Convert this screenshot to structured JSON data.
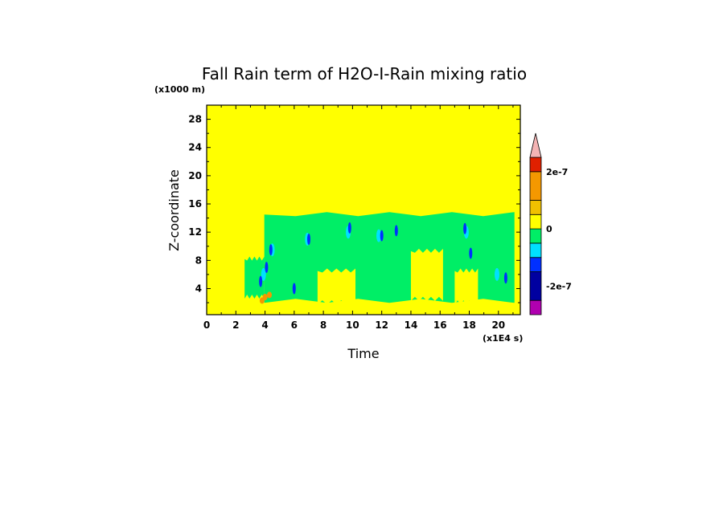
{
  "chart_data": {
    "type": "heatmap",
    "title": "Fall Rain term of H2O-I-Rain mixing ratio",
    "xlabel": "Time",
    "ylabel": "Z-coordinate",
    "x_unit": "(x1E4 s)",
    "y_unit": "(x1000 m)",
    "xlim": [
      0,
      21.5
    ],
    "ylim": [
      0.3,
      30
    ],
    "x_ticks": [
      0,
      2,
      4,
      6,
      8,
      10,
      12,
      14,
      16,
      18,
      20
    ],
    "y_ticks": [
      4,
      8,
      12,
      16,
      20,
      24,
      28
    ],
    "colorbar": {
      "levels": [
        {
          "lower": -3e-07,
          "upper": -2.5e-07,
          "color": "#b000b0"
        },
        {
          "lower": -2.5e-07,
          "upper": -1.5e-07,
          "color": "#0000a0"
        },
        {
          "lower": -1.5e-07,
          "upper": -1e-07,
          "color": "#0030ff"
        },
        {
          "lower": -1e-07,
          "upper": -5e-08,
          "color": "#00e0ff"
        },
        {
          "lower": -5e-08,
          "upper": 0,
          "color": "#00ee66"
        },
        {
          "lower": 0,
          "upper": 5e-08,
          "color": "#ffff00"
        },
        {
          "lower": 5e-08,
          "upper": 1e-07,
          "color": "#f0c000"
        },
        {
          "lower": 1e-07,
          "upper": 2e-07,
          "color": "#f49800"
        },
        {
          "lower": 2e-07,
          "upper": 2.5e-07,
          "color": "#e02000"
        }
      ],
      "overflow_color": "#f4b4b4",
      "tick_labels": [
        {
          "value": 2e-07,
          "label": "2e-7"
        },
        {
          "value": 0,
          "label": "0"
        },
        {
          "value": -2e-07,
          "label": "-2e-7"
        }
      ]
    },
    "background_color": "#ffff00",
    "regions": [
      {
        "category": "band",
        "color": "#00ee66",
        "x_start": 3.95,
        "x_end": 21.1,
        "z_bottom": 2.2,
        "z_top": 14.5
      },
      {
        "category": "early-cloud",
        "color": "#00ee66",
        "x_start": 2.6,
        "x_end": 3.95,
        "z_bottom": 2.8,
        "z_top": 8.2
      },
      {
        "category": "yellow-gap",
        "color": "#ffff00",
        "x_start": 14.0,
        "x_end": 16.2,
        "z_bottom": 2.5,
        "z_top": 9.3
      },
      {
        "category": "yellow-gap",
        "color": "#ffff00",
        "x_start": 7.6,
        "x_end": 10.2,
        "z_bottom": 2.0,
        "z_top": 6.5
      },
      {
        "category": "yellow-gap",
        "color": "#ffff00",
        "x_start": 17.0,
        "x_end": 18.6,
        "z_bottom": 2.0,
        "z_top": 6.5
      }
    ],
    "cyan_patches": [
      [
        3.9,
        6.0
      ],
      [
        4.5,
        9.5
      ],
      [
        6.9,
        11.0
      ],
      [
        9.7,
        12.0
      ],
      [
        11.8,
        11.5
      ],
      [
        17.8,
        12.0
      ],
      [
        19.9,
        6.0
      ]
    ],
    "blue_patches": [
      [
        3.7,
        5.0
      ],
      [
        4.1,
        7.0
      ],
      [
        4.4,
        9.5
      ],
      [
        7.0,
        11.0
      ],
      [
        9.8,
        12.6
      ],
      [
        12.0,
        11.5
      ],
      [
        13.0,
        12.2
      ],
      [
        17.7,
        12.5
      ],
      [
        18.1,
        9.0
      ],
      [
        20.5,
        5.5
      ],
      [
        6.0,
        4.0
      ]
    ],
    "orange_patches": [
      [
        4.0,
        2.8
      ],
      [
        4.3,
        3.1
      ],
      [
        3.8,
        2.3
      ]
    ]
  }
}
